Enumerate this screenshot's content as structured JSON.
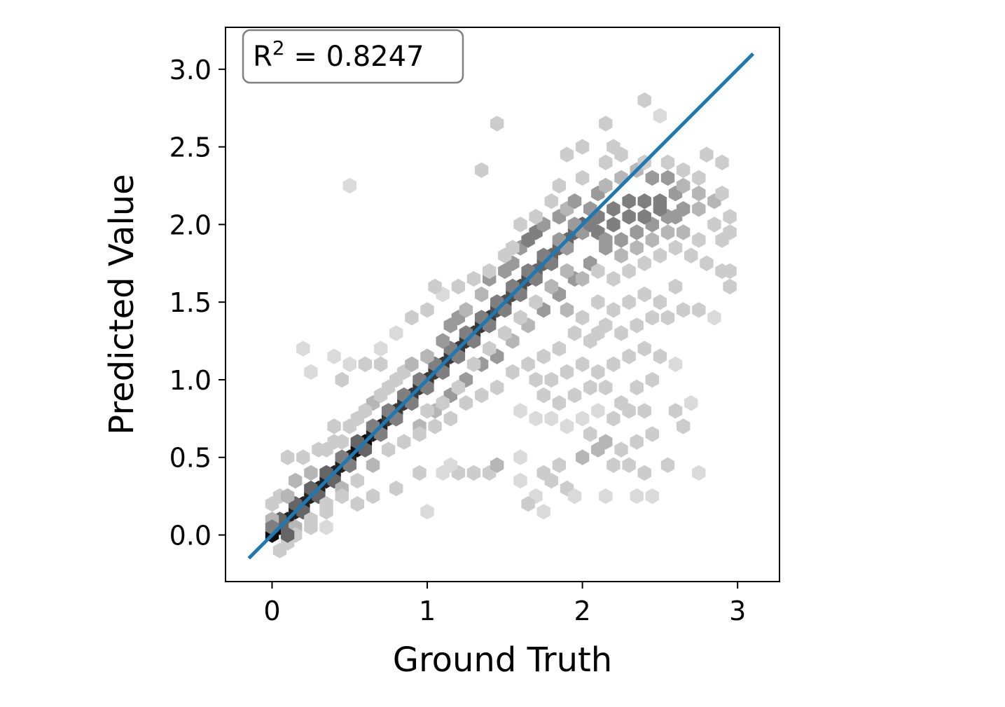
{
  "chart_data": {
    "type": "hexbin",
    "xlabel": "Ground Truth",
    "ylabel": "Predicted Value",
    "xlim": [
      -0.3,
      3.27
    ],
    "ylim": [
      -0.3,
      3.27
    ],
    "xticks": [
      0,
      1,
      2,
      3
    ],
    "xtick_labels": [
      "0",
      "1",
      "2",
      "3"
    ],
    "yticks": [
      0.0,
      0.5,
      1.0,
      1.5,
      2.0,
      2.5,
      3.0
    ],
    "ytick_labels": [
      "0.0",
      "0.5",
      "1.0",
      "1.5",
      "2.0",
      "2.5",
      "3.0"
    ],
    "annotation": {
      "base": "R",
      "exponent": "2",
      "rest": " = 0.8247",
      "position": "top-left"
    },
    "fit_line": {
      "x": [
        -0.15,
        3.1
      ],
      "y": [
        -0.15,
        3.1
      ],
      "color": "#1f77b4"
    },
    "colormap": "Greys",
    "grid": false,
    "hex_bins": [
      [
        0.0,
        0.0,
        10
      ],
      [
        0.05,
        0.05,
        10
      ],
      [
        0.1,
        0.1,
        9
      ],
      [
        0.15,
        0.15,
        9
      ],
      [
        0.2,
        0.2,
        9
      ],
      [
        0.25,
        0.25,
        9
      ],
      [
        0.3,
        0.3,
        9
      ],
      [
        0.35,
        0.35,
        9
      ],
      [
        0.4,
        0.4,
        9
      ],
      [
        0.45,
        0.45,
        9
      ],
      [
        0.5,
        0.5,
        9
      ],
      [
        0.55,
        0.55,
        10
      ],
      [
        0.6,
        0.6,
        10
      ],
      [
        0.65,
        0.65,
        9
      ],
      [
        0.7,
        0.7,
        9
      ],
      [
        0.75,
        0.75,
        8
      ],
      [
        0.8,
        0.8,
        8
      ],
      [
        0.85,
        0.85,
        8
      ],
      [
        0.9,
        0.9,
        8
      ],
      [
        0.95,
        0.95,
        8
      ],
      [
        1.0,
        1.0,
        8
      ],
      [
        1.05,
        1.05,
        8
      ],
      [
        1.1,
        1.1,
        8
      ],
      [
        1.15,
        1.15,
        8
      ],
      [
        1.2,
        1.2,
        8
      ],
      [
        1.25,
        1.25,
        8
      ],
      [
        1.3,
        1.3,
        8
      ],
      [
        1.35,
        1.35,
        8
      ],
      [
        1.4,
        1.4,
        8
      ],
      [
        1.45,
        1.45,
        7
      ],
      [
        1.5,
        1.5,
        7
      ],
      [
        1.55,
        1.55,
        7
      ],
      [
        1.6,
        1.6,
        7
      ],
      [
        1.65,
        1.65,
        7
      ],
      [
        1.7,
        1.7,
        6
      ],
      [
        1.75,
        1.75,
        6
      ],
      [
        1.8,
        1.8,
        6
      ],
      [
        1.85,
        1.85,
        6
      ],
      [
        1.9,
        1.9,
        6
      ],
      [
        1.95,
        1.95,
        6
      ],
      [
        2.0,
        2.0,
        6
      ],
      [
        2.1,
        2.05,
        5
      ],
      [
        2.2,
        2.1,
        5
      ],
      [
        2.3,
        2.15,
        5
      ],
      [
        2.4,
        2.15,
        5
      ],
      [
        2.5,
        2.15,
        5
      ],
      [
        2.6,
        2.2,
        4
      ],
      [
        0.05,
        0.1,
        6
      ],
      [
        0.1,
        0.05,
        6
      ],
      [
        0.15,
        0.2,
        6
      ],
      [
        0.2,
        0.15,
        6
      ],
      [
        0.25,
        0.3,
        6
      ],
      [
        0.3,
        0.25,
        6
      ],
      [
        0.35,
        0.4,
        6
      ],
      [
        0.4,
        0.35,
        6
      ],
      [
        0.45,
        0.5,
        5
      ],
      [
        0.5,
        0.45,
        5
      ],
      [
        0.55,
        0.6,
        6
      ],
      [
        0.6,
        0.55,
        6
      ],
      [
        0.65,
        0.7,
        5
      ],
      [
        0.7,
        0.65,
        5
      ],
      [
        0.75,
        0.8,
        5
      ],
      [
        0.8,
        0.75,
        5
      ],
      [
        0.85,
        0.9,
        5
      ],
      [
        0.9,
        0.85,
        5
      ],
      [
        0.95,
        1.0,
        5
      ],
      [
        1.0,
        0.95,
        5
      ],
      [
        1.05,
        1.1,
        5
      ],
      [
        1.1,
        1.05,
        5
      ],
      [
        1.15,
        1.2,
        5
      ],
      [
        1.2,
        1.15,
        5
      ],
      [
        1.25,
        1.3,
        5
      ],
      [
        1.3,
        1.25,
        5
      ],
      [
        1.35,
        1.4,
        5
      ],
      [
        1.4,
        1.35,
        5
      ],
      [
        1.45,
        1.5,
        5
      ],
      [
        1.5,
        1.45,
        5
      ],
      [
        1.55,
        1.6,
        5
      ],
      [
        1.6,
        1.55,
        5
      ],
      [
        1.65,
        1.7,
        5
      ],
      [
        1.7,
        1.65,
        5
      ],
      [
        1.75,
        1.8,
        5
      ],
      [
        1.8,
        1.75,
        5
      ],
      [
        1.85,
        1.9,
        4
      ],
      [
        1.9,
        1.85,
        4
      ],
      [
        1.95,
        2.0,
        4
      ],
      [
        2.0,
        1.95,
        4
      ],
      [
        0.0,
        0.1,
        3
      ],
      [
        0.0,
        0.2,
        2
      ],
      [
        0.05,
        0.25,
        2
      ],
      [
        0.1,
        0.25,
        3
      ],
      [
        0.15,
        0.35,
        3
      ],
      [
        0.25,
        0.4,
        3
      ],
      [
        0.35,
        0.55,
        2
      ],
      [
        0.45,
        0.6,
        2
      ],
      [
        0.55,
        0.75,
        2
      ],
      [
        0.65,
        0.85,
        3
      ],
      [
        0.75,
        0.95,
        2
      ],
      [
        0.85,
        1.05,
        2
      ],
      [
        0.9,
        1.1,
        3
      ],
      [
        1.0,
        1.15,
        3
      ],
      [
        1.1,
        1.25,
        4
      ],
      [
        1.15,
        1.35,
        4
      ],
      [
        1.2,
        1.4,
        4
      ],
      [
        1.25,
        1.45,
        3
      ],
      [
        1.35,
        1.55,
        3
      ],
      [
        1.4,
        1.65,
        4
      ],
      [
        1.5,
        1.7,
        4
      ],
      [
        1.55,
        1.75,
        4
      ],
      [
        1.6,
        1.85,
        4
      ],
      [
        1.65,
        1.9,
        5
      ],
      [
        1.7,
        1.95,
        5
      ],
      [
        1.75,
        2.0,
        4
      ],
      [
        1.85,
        2.05,
        4
      ],
      [
        1.9,
        2.1,
        3
      ],
      [
        1.95,
        2.15,
        4
      ],
      [
        2.05,
        2.1,
        4
      ],
      [
        2.1,
        2.2,
        4
      ],
      [
        2.15,
        2.25,
        3
      ],
      [
        2.25,
        2.3,
        3
      ],
      [
        2.35,
        2.35,
        3
      ],
      [
        2.45,
        2.3,
        4
      ],
      [
        2.55,
        2.3,
        4
      ],
      [
        2.65,
        2.25,
        3
      ],
      [
        2.75,
        2.2,
        3
      ],
      [
        0.15,
        0.05,
        3
      ],
      [
        0.25,
        0.1,
        2
      ],
      [
        0.35,
        0.2,
        2
      ],
      [
        0.45,
        0.3,
        3
      ],
      [
        0.55,
        0.35,
        2
      ],
      [
        0.65,
        0.45,
        3
      ],
      [
        0.75,
        0.55,
        2
      ],
      [
        0.85,
        0.6,
        2
      ],
      [
        0.95,
        0.7,
        3
      ],
      [
        1.05,
        0.8,
        3
      ],
      [
        1.15,
        0.9,
        4
      ],
      [
        1.25,
        1.0,
        4
      ],
      [
        1.35,
        1.1,
        4
      ],
      [
        1.45,
        1.15,
        4
      ],
      [
        1.55,
        1.25,
        3
      ],
      [
        1.65,
        1.35,
        3
      ],
      [
        1.75,
        1.45,
        4
      ],
      [
        1.85,
        1.55,
        4
      ],
      [
        1.95,
        1.65,
        4
      ],
      [
        2.05,
        1.75,
        4
      ],
      [
        2.15,
        1.85,
        4
      ],
      [
        2.25,
        1.9,
        4
      ],
      [
        2.35,
        1.95,
        4
      ],
      [
        2.45,
        2.0,
        4
      ],
      [
        2.55,
        2.05,
        4
      ],
      [
        2.65,
        2.1,
        4
      ],
      [
        2.75,
        2.1,
        3
      ],
      [
        2.85,
        2.15,
        3
      ],
      [
        2.1,
        1.95,
        5
      ],
      [
        2.2,
        2.0,
        5
      ],
      [
        2.3,
        2.05,
        5
      ],
      [
        2.4,
        2.05,
        5
      ],
      [
        2.5,
        2.1,
        5
      ],
      [
        2.6,
        2.05,
        4
      ],
      [
        2.05,
        2.0,
        5
      ],
      [
        2.15,
        1.9,
        4
      ],
      [
        2.25,
        1.8,
        3
      ],
      [
        2.35,
        1.85,
        3
      ],
      [
        2.45,
        1.9,
        3
      ],
      [
        2.55,
        1.95,
        3
      ],
      [
        2.65,
        1.95,
        3
      ],
      [
        2.75,
        1.9,
        2
      ],
      [
        2.85,
        2.0,
        2
      ],
      [
        2.95,
        1.95,
        2
      ],
      [
        2.95,
        2.05,
        2
      ],
      [
        2.9,
        2.2,
        2
      ],
      [
        1.9,
        1.7,
        3
      ],
      [
        2.0,
        1.65,
        3
      ],
      [
        2.1,
        1.7,
        2
      ],
      [
        2.2,
        1.65,
        2
      ],
      [
        2.3,
        1.7,
        2
      ],
      [
        2.4,
        1.75,
        2
      ],
      [
        2.5,
        1.8,
        2
      ],
      [
        2.6,
        1.85,
        2
      ],
      [
        2.7,
        1.8,
        2
      ],
      [
        2.8,
        1.75,
        2
      ],
      [
        2.9,
        1.7,
        2
      ],
      [
        1.8,
        1.6,
        3
      ],
      [
        1.7,
        1.5,
        2
      ],
      [
        1.6,
        1.4,
        2
      ],
      [
        1.5,
        1.3,
        2
      ],
      [
        1.4,
        1.2,
        2
      ],
      [
        1.3,
        1.1,
        2
      ],
      [
        1.2,
        0.95,
        2
      ],
      [
        1.1,
        0.85,
        2
      ],
      [
        1.0,
        0.8,
        2
      ],
      [
        0.95,
        0.65,
        2
      ],
      [
        1.9,
        1.45,
        3
      ],
      [
        2.0,
        1.4,
        2
      ],
      [
        2.1,
        1.5,
        2
      ],
      [
        2.2,
        1.45,
        2
      ],
      [
        2.3,
        1.5,
        2
      ],
      [
        2.4,
        1.55,
        2
      ],
      [
        2.5,
        1.5,
        2
      ],
      [
        2.6,
        1.6,
        2
      ],
      [
        1.95,
        1.3,
        2
      ],
      [
        2.05,
        1.25,
        2
      ],
      [
        2.15,
        1.35,
        2
      ],
      [
        2.25,
        1.3,
        2
      ],
      [
        2.35,
        1.35,
        2
      ],
      [
        2.45,
        1.4,
        2
      ],
      [
        2.55,
        1.4,
        2
      ],
      [
        2.65,
        1.45,
        2
      ],
      [
        2.75,
        1.45,
        2
      ],
      [
        2.85,
        1.4,
        1
      ],
      [
        1.85,
        1.2,
        2
      ],
      [
        1.75,
        1.15,
        2
      ],
      [
        1.65,
        1.1,
        2
      ],
      [
        1.55,
        1.05,
        2
      ],
      [
        1.45,
        0.95,
        2
      ],
      [
        1.35,
        0.9,
        2
      ],
      [
        1.25,
        0.85,
        2
      ],
      [
        1.15,
        0.75,
        2
      ],
      [
        1.05,
        0.7,
        2
      ],
      [
        1.7,
        1.0,
        2
      ],
      [
        1.8,
        1.0,
        2
      ],
      [
        1.9,
        1.05,
        2
      ],
      [
        2.0,
        1.1,
        2
      ],
      [
        2.1,
        1.05,
        2
      ],
      [
        2.2,
        1.1,
        2
      ],
      [
        2.3,
        1.15,
        2
      ],
      [
        2.4,
        1.2,
        2
      ],
      [
        2.5,
        1.15,
        2
      ],
      [
        2.6,
        1.1,
        1
      ],
      [
        1.75,
        0.9,
        2
      ],
      [
        1.85,
        0.85,
        2
      ],
      [
        1.95,
        0.9,
        2
      ],
      [
        2.05,
        0.95,
        2
      ],
      [
        2.15,
        0.95,
        2
      ],
      [
        2.25,
        0.85,
        2
      ],
      [
        2.35,
        0.95,
        2
      ],
      [
        2.45,
        1.0,
        2
      ],
      [
        1.6,
        0.8,
        1
      ],
      [
        1.7,
        0.75,
        1
      ],
      [
        1.8,
        0.75,
        1
      ],
      [
        1.9,
        0.7,
        1
      ],
      [
        2.0,
        0.75,
        1
      ],
      [
        2.1,
        0.8,
        1
      ],
      [
        2.2,
        0.75,
        2
      ],
      [
        2.3,
        0.8,
        2
      ],
      [
        2.4,
        0.8,
        2
      ],
      [
        2.6,
        0.8,
        2
      ],
      [
        2.7,
        0.85,
        1
      ],
      [
        2.05,
        0.65,
        2
      ],
      [
        2.15,
        0.6,
        3
      ],
      [
        2.25,
        0.55,
        2
      ],
      [
        2.35,
        0.6,
        2
      ],
      [
        2.45,
        0.65,
        2
      ],
      [
        2.0,
        0.5,
        3
      ],
      [
        2.1,
        0.55,
        3
      ],
      [
        2.2,
        0.45,
        2
      ],
      [
        2.3,
        0.45,
        2
      ],
      [
        2.4,
        0.4,
        2
      ],
      [
        2.55,
        0.45,
        2
      ],
      [
        1.4,
        0.4,
        2
      ],
      [
        1.45,
        0.45,
        3
      ],
      [
        1.3,
        0.4,
        2
      ],
      [
        1.2,
        0.4,
        2
      ],
      [
        1.1,
        0.4,
        1
      ],
      [
        1.6,
        0.5,
        1
      ],
      [
        1.8,
        0.35,
        2
      ],
      [
        1.9,
        0.3,
        2
      ],
      [
        1.75,
        0.4,
        2
      ],
      [
        1.85,
        0.45,
        2
      ],
      [
        1.7,
        0.25,
        1
      ],
      [
        1.65,
        0.2,
        2
      ],
      [
        1.75,
        0.15,
        1
      ],
      [
        1.95,
        0.25,
        1
      ],
      [
        2.15,
        0.25,
        1
      ],
      [
        2.35,
        0.25,
        1
      ],
      [
        2.45,
        0.25,
        1
      ],
      [
        2.75,
        0.4,
        1
      ],
      [
        2.65,
        0.7,
        2
      ],
      [
        0.1,
        0.5,
        2
      ],
      [
        0.2,
        0.5,
        2
      ],
      [
        0.3,
        0.55,
        2
      ],
      [
        0.4,
        0.6,
        2
      ],
      [
        0.4,
        0.7,
        2
      ],
      [
        0.5,
        0.7,
        2
      ],
      [
        0.6,
        0.8,
        2
      ],
      [
        0.7,
        0.9,
        2
      ],
      [
        0.8,
        1.0,
        2
      ],
      [
        0.7,
        1.1,
        2
      ],
      [
        0.6,
        1.1,
        2
      ],
      [
        0.5,
        1.1,
        1
      ],
      [
        0.45,
        1.0,
        2
      ],
      [
        0.4,
        1.15,
        1
      ],
      [
        0.25,
        1.05,
        1
      ],
      [
        0.2,
        1.2,
        1
      ],
      [
        0.7,
        1.2,
        1
      ],
      [
        0.8,
        1.3,
        1
      ],
      [
        0.9,
        1.4,
        2
      ],
      [
        1.0,
        1.45,
        2
      ],
      [
        1.1,
        1.55,
        1
      ],
      [
        1.05,
        1.6,
        2
      ],
      [
        1.2,
        1.6,
        2
      ],
      [
        1.3,
        1.65,
        2
      ],
      [
        1.4,
        1.7,
        2
      ],
      [
        1.5,
        1.8,
        2
      ],
      [
        1.55,
        1.85,
        2
      ],
      [
        1.6,
        2.0,
        2
      ],
      [
        1.7,
        2.05,
        2
      ],
      [
        1.8,
        2.15,
        2
      ],
      [
        1.85,
        2.25,
        2
      ],
      [
        2.0,
        2.3,
        2
      ],
      [
        2.15,
        2.4,
        2
      ],
      [
        2.25,
        2.45,
        2
      ],
      [
        2.4,
        2.4,
        2
      ],
      [
        2.55,
        2.4,
        2
      ],
      [
        2.65,
        2.35,
        2
      ],
      [
        2.75,
        2.3,
        2
      ],
      [
        2.8,
        2.45,
        2
      ],
      [
        2.9,
        2.4,
        2
      ],
      [
        2.2,
        2.5,
        2
      ],
      [
        2.0,
        2.5,
        2
      ],
      [
        1.9,
        2.45,
        2
      ],
      [
        2.4,
        2.8,
        2
      ],
      [
        2.15,
        2.65,
        2
      ],
      [
        2.5,
        2.7,
        1
      ],
      [
        1.45,
        2.65,
        2
      ],
      [
        1.35,
        2.35,
        2
      ],
      [
        0.5,
        2.25,
        1
      ],
      [
        2.9,
        1.9,
        2
      ],
      [
        2.95,
        1.6,
        2
      ],
      [
        2.95,
        1.7,
        2
      ],
      [
        2.1,
        1.3,
        2
      ],
      [
        1.6,
        0.35,
        1
      ],
      [
        1.0,
        0.15,
        1
      ],
      [
        1.15,
        0.45,
        1
      ],
      [
        0.95,
        0.4,
        2
      ],
      [
        0.8,
        0.3,
        2
      ],
      [
        0.65,
        0.25,
        2
      ],
      [
        0.55,
        0.2,
        2
      ],
      [
        0.45,
        0.25,
        2
      ],
      [
        0.35,
        0.15,
        2
      ],
      [
        0.25,
        0.05,
        2
      ],
      [
        0.15,
        0.0,
        2
      ],
      [
        0.35,
        0.05,
        1
      ],
      [
        0.1,
        -0.05,
        2
      ],
      [
        0.05,
        -0.1,
        2
      ],
      [
        0.0,
        0.05,
        5
      ],
      [
        0.1,
        0.0,
        6
      ]
    ]
  }
}
